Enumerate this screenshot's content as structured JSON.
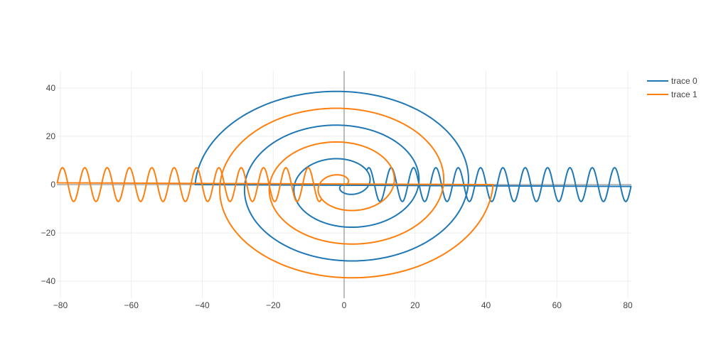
{
  "chart_data": {
    "type": "line",
    "title": "",
    "xlabel": "",
    "ylabel": "",
    "xlim": [
      -81,
      81
    ],
    "ylim": [
      -47,
      47
    ],
    "x_ticks": [
      -80,
      -60,
      -40,
      -20,
      0,
      20,
      40,
      60,
      80
    ],
    "y_ticks": [
      -40,
      -20,
      0,
      20,
      40
    ],
    "x_tick_labels": [
      "−80",
      "−60",
      "−40",
      "−20",
      "0",
      "20",
      "40",
      "60",
      "80"
    ],
    "y_tick_labels": [
      "−40",
      "−20",
      "0",
      "20",
      "40"
    ],
    "grid": true,
    "legend_position": "top-right",
    "series": [
      {
        "name": "trace 0",
        "color": "#1f77b4",
        "spiral": {
          "turns": 3,
          "end_radius": 42,
          "end_angle_deg": 180
        },
        "wave": {
          "x_start": 6.5,
          "x_end": 81,
          "amplitude": 7,
          "period": 6.3
        },
        "key_points": [
          [
            1,
            0
          ],
          [
            -2.5,
            -0.5
          ],
          [
            12,
            -7
          ],
          [
            -17,
            0
          ],
          [
            37,
            -7
          ],
          [
            -42,
            0
          ],
          [
            41,
            -15
          ],
          [
            45,
            7
          ],
          [
            81,
            -1
          ]
        ]
      },
      {
        "name": "trace 1",
        "color": "#ff7f0e",
        "spiral": {
          "turns": 3,
          "end_radius": 42,
          "end_angle_deg": 0
        },
        "wave": {
          "x_start": -81,
          "x_end": -6.5,
          "amplitude": 7,
          "period": 6.3
        },
        "key_points": [
          [
            -1,
            0
          ],
          [
            2.5,
            0.5
          ],
          [
            -12,
            7
          ],
          [
            17,
            0
          ],
          [
            -37,
            7
          ],
          [
            42,
            0
          ],
          [
            -41,
            15
          ],
          [
            -45,
            -7
          ],
          [
            -81,
            1
          ]
        ]
      }
    ]
  }
}
